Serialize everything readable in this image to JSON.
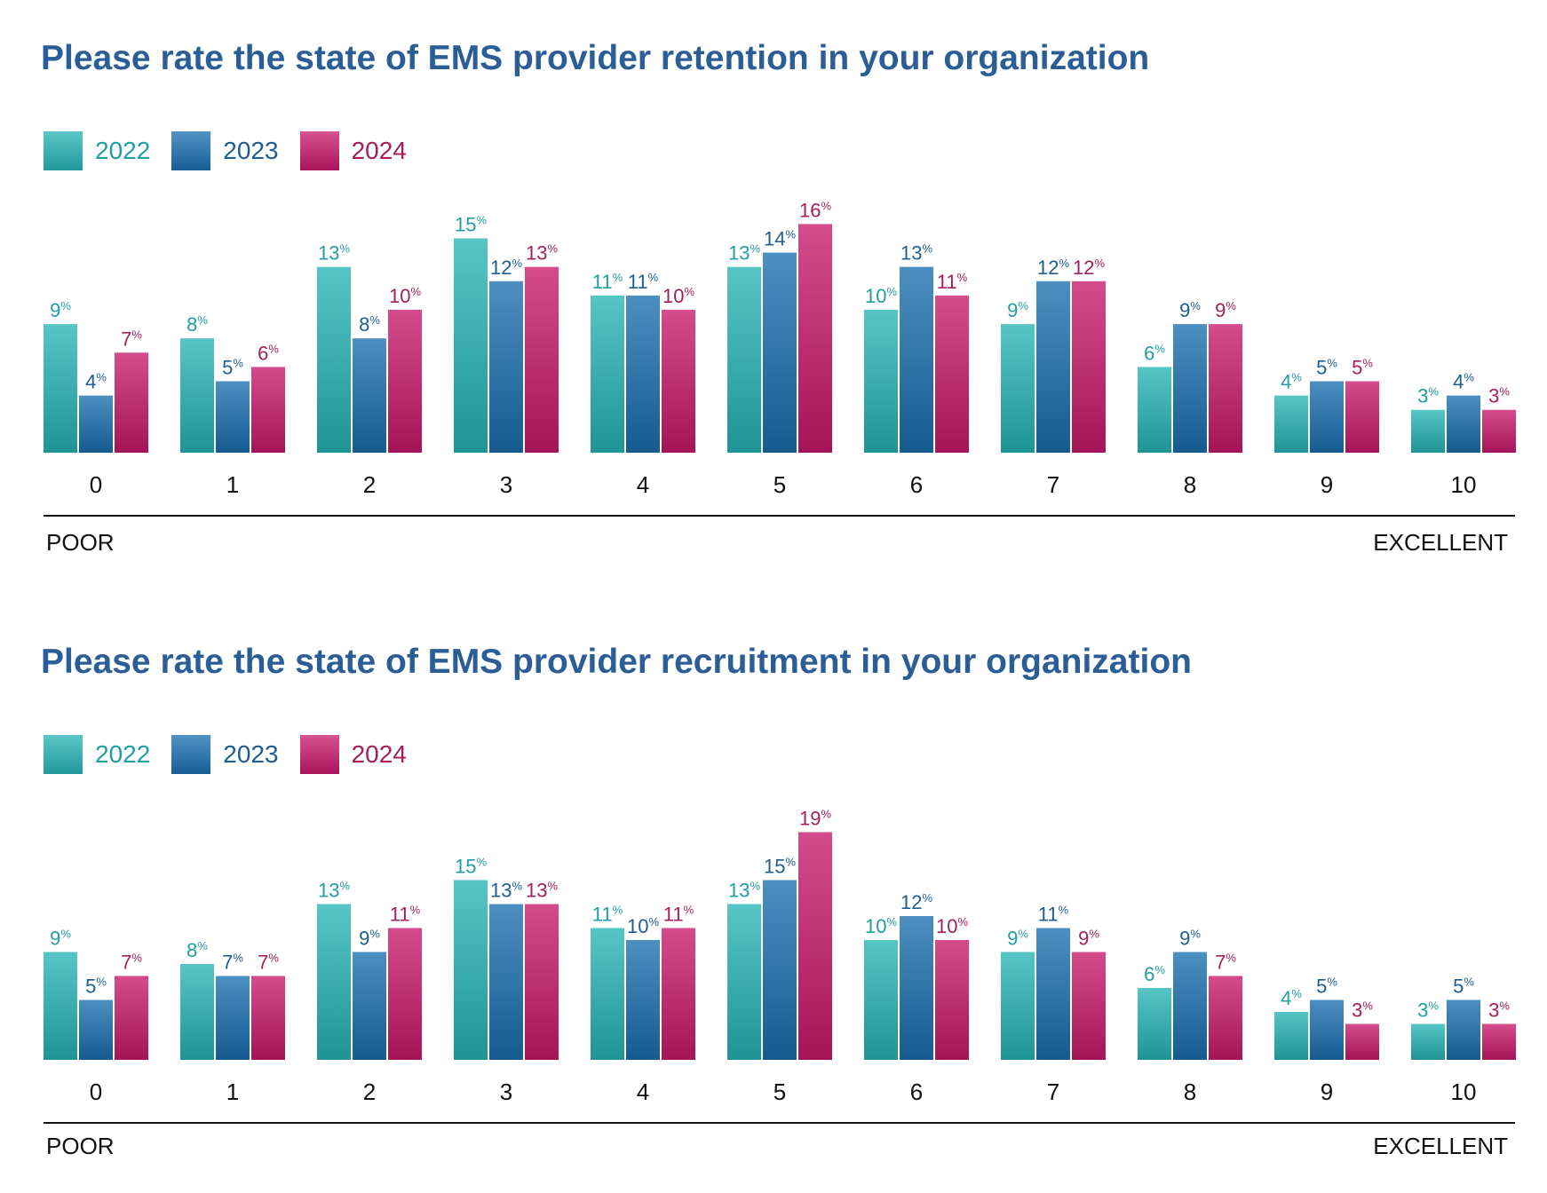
{
  "colors": {
    "title": "#2b5d96",
    "series_2022": "#26b4b6",
    "series_2023": "#1a6fb0",
    "series_2024": "#c8196b",
    "label_2022": "#1f9ea3",
    "label_2023": "#1d5d94",
    "label_2024": "#a41e5a"
  },
  "chart_data": [
    {
      "type": "bar",
      "title": "Please rate the state of EMS provider retention in your organization",
      "categories": [
        "0",
        "1",
        "2",
        "3",
        "4",
        "5",
        "6",
        "7",
        "8",
        "9",
        "10"
      ],
      "series": [
        {
          "name": "2022",
          "values": [
            9,
            8,
            13,
            15,
            11,
            13,
            10,
            9,
            6,
            4,
            3
          ]
        },
        {
          "name": "2023",
          "values": [
            4,
            5,
            8,
            12,
            11,
            14,
            13,
            12,
            9,
            5,
            4
          ]
        },
        {
          "name": "2024",
          "values": [
            7,
            6,
            10,
            13,
            10,
            16,
            11,
            12,
            9,
            5,
            3
          ]
        }
      ],
      "value_suffix": "%",
      "scale_low": "POOR",
      "scale_high": "EXCELLENT",
      "legend": "top-left",
      "grid": false
    },
    {
      "type": "bar",
      "title": "Please rate the state of EMS provider recruitment in your organization",
      "categories": [
        "0",
        "1",
        "2",
        "3",
        "4",
        "5",
        "6",
        "7",
        "8",
        "9",
        "10"
      ],
      "series": [
        {
          "name": "2022",
          "values": [
            9,
            8,
            13,
            15,
            11,
            13,
            10,
            9,
            6,
            4,
            3
          ]
        },
        {
          "name": "2023",
          "values": [
            5,
            7,
            9,
            13,
            10,
            15,
            12,
            11,
            9,
            5,
            5
          ]
        },
        {
          "name": "2024",
          "values": [
            7,
            7,
            11,
            13,
            11,
            19,
            10,
            9,
            7,
            3,
            3
          ]
        }
      ],
      "value_suffix": "%",
      "scale_low": "POOR",
      "scale_high": "EXCELLENT",
      "legend": "top-left",
      "grid": false
    }
  ]
}
